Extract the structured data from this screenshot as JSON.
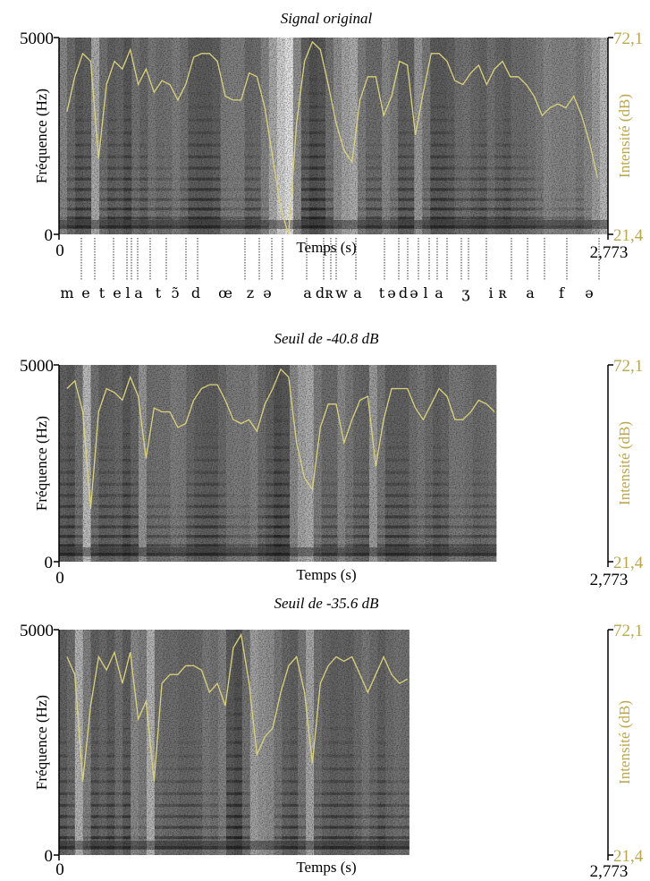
{
  "figure": {
    "panels": [
      {
        "title": "Signal original",
        "y_max_label": "5000",
        "y_min_label": "0",
        "x_min_label": "0",
        "x_max_label": "2,773",
        "ylabel": "Fréquence (Hz)",
        "xlabel": "Temps (s)",
        "y2label": "Intensité (dB)",
        "y2_max_label": "72,1",
        "y2_min_label": "21,4"
      },
      {
        "title": "Seuil de -40.8 dB",
        "y_max_label": "5000",
        "y_min_label": "0",
        "x_min_label": "0",
        "x_max_label": "2,773",
        "ylabel": "Fréquence (Hz)",
        "xlabel": "Temps (s)",
        "y2label": "Intensité (dB)",
        "y2_max_label": "72,1",
        "y2_min_label": "21,4"
      },
      {
        "title": "Seuil de -35.6 dB",
        "y_max_label": "5000",
        "y_min_label": "0",
        "x_min_label": "0",
        "x_max_label": "2,773",
        "ylabel": "Fréquence (Hz)",
        "xlabel": "Temps (s)",
        "y2label": "Intensité (dB)",
        "y2_max_label": "72,1",
        "y2_min_label": "21,4"
      }
    ],
    "phonemes": [
      "m",
      "e",
      "t",
      "e",
      "l",
      "a",
      "t",
      "ɔ̃",
      "d",
      "œ",
      "z",
      "ə",
      "a",
      "d",
      "ʀ",
      "w",
      "a",
      "t",
      "ə",
      "d",
      "ə",
      "l",
      "a",
      "ʒ",
      "i",
      "ʀ",
      "a",
      "f",
      "ə"
    ],
    "colors": {
      "intensity": "#d9d27a",
      "intensity_text": "#b9a84a",
      "axis": "#000000"
    }
  },
  "chart_data": [
    {
      "type": "heatmap",
      "subtype": "spectrogram-with-intensity-contour",
      "title": "Signal original",
      "xlabel": "Temps (s)",
      "ylabel": "Fréquence (Hz)",
      "y2label": "Intensité (dB)",
      "xlim": [
        0,
        2.773
      ],
      "ylim": [
        0,
        5000
      ],
      "y2lim": [
        21.4,
        72.1
      ],
      "retained_duration": 2.773,
      "intensity": {
        "t": [
          0.04,
          0.08,
          0.12,
          0.16,
          0.2,
          0.24,
          0.28,
          0.32,
          0.36,
          0.4,
          0.44,
          0.48,
          0.52,
          0.56,
          0.6,
          0.64,
          0.68,
          0.72,
          0.76,
          0.8,
          0.84,
          0.88,
          0.92,
          0.96,
          1.0,
          1.04,
          1.08,
          1.12,
          1.16,
          1.2,
          1.24,
          1.28,
          1.32,
          1.36,
          1.4,
          1.44,
          1.48,
          1.52,
          1.56,
          1.6,
          1.64,
          1.68,
          1.72,
          1.76,
          1.8,
          1.84,
          1.88,
          1.92,
          1.96,
          2.0,
          2.04,
          2.08,
          2.12,
          2.16,
          2.2,
          2.24,
          2.28,
          2.32,
          2.36,
          2.4,
          2.44,
          2.48,
          2.52,
          2.56,
          2.6,
          2.64,
          2.68,
          2.72
        ],
        "db": [
          53,
          62,
          68,
          66,
          41,
          60,
          66,
          64,
          69,
          60,
          64,
          58,
          61,
          60,
          56,
          60,
          67,
          68,
          68,
          66,
          57,
          56,
          56,
          63,
          62,
          54,
          41,
          28,
          21.4,
          50,
          66,
          71,
          69,
          60,
          50,
          43,
          40,
          56,
          62,
          62,
          52,
          57,
          66,
          65,
          47,
          58,
          68,
          68,
          66,
          61,
          60,
          63,
          65,
          60,
          64,
          66,
          62,
          62,
          60,
          57,
          52,
          54,
          55,
          54,
          57,
          52,
          45,
          36
        ]
      },
      "phoneme_segmentation": [
        "m",
        "e",
        "t",
        "e",
        "l",
        "a",
        "t",
        "ɔ̃",
        "d",
        "œ",
        "z",
        "ə",
        "a",
        "d",
        "ʀ",
        "w",
        "a",
        "t",
        "ə",
        "d",
        "ə",
        "l",
        "a",
        "ʒ",
        "i",
        "ʀ",
        "a",
        "f",
        "ə"
      ],
      "grid": false
    },
    {
      "type": "heatmap",
      "subtype": "spectrogram-with-intensity-contour",
      "title": "Seuil de -40.8 dB",
      "xlabel": "Temps (s)",
      "ylabel": "Fréquence (Hz)",
      "y2label": "Intensité (dB)",
      "xlim": [
        0,
        2.773
      ],
      "ylim": [
        0,
        5000
      ],
      "y2lim": [
        21.4,
        72.1
      ],
      "retained_duration": 2.21,
      "intensity": {
        "t": [
          0.04,
          0.08,
          0.12,
          0.16,
          0.2,
          0.24,
          0.28,
          0.32,
          0.36,
          0.4,
          0.44,
          0.48,
          0.52,
          0.56,
          0.6,
          0.64,
          0.68,
          0.72,
          0.76,
          0.8,
          0.84,
          0.88,
          0.92,
          0.96,
          1.0,
          1.04,
          1.08,
          1.12,
          1.16,
          1.2,
          1.24,
          1.28,
          1.32,
          1.36,
          1.4,
          1.44,
          1.48,
          1.52,
          1.56,
          1.6,
          1.64,
          1.68,
          1.72,
          1.76,
          1.8,
          1.84,
          1.88,
          1.92,
          1.96,
          2.0,
          2.04,
          2.08,
          2.12,
          2.16,
          2.2
        ],
        "db": [
          66,
          68,
          60,
          35,
          60,
          66,
          65,
          63,
          69,
          64,
          48,
          61,
          60,
          60,
          56,
          57,
          63,
          66,
          67,
          67,
          63,
          58,
          57,
          58,
          55,
          62,
          66,
          71,
          69,
          52,
          43,
          40,
          56,
          62,
          62,
          52,
          58,
          63,
          64,
          46,
          58,
          66,
          66,
          66,
          61,
          58,
          62,
          66,
          64,
          58,
          58,
          60,
          63,
          62,
          60
        ]
      },
      "grid": false
    },
    {
      "type": "heatmap",
      "subtype": "spectrogram-with-intensity-contour",
      "title": "Seuil de -35.6 dB",
      "xlabel": "Temps (s)",
      "ylabel": "Fréquence (Hz)",
      "y2label": "Intensité (dB)",
      "xlim": [
        0,
        2.773
      ],
      "ylim": [
        0,
        5000
      ],
      "y2lim": [
        21.4,
        72.1
      ],
      "retained_duration": 1.77,
      "intensity": {
        "t": [
          0.04,
          0.08,
          0.12,
          0.16,
          0.2,
          0.24,
          0.28,
          0.32,
          0.36,
          0.4,
          0.44,
          0.48,
          0.52,
          0.56,
          0.6,
          0.64,
          0.68,
          0.72,
          0.76,
          0.8,
          0.84,
          0.88,
          0.92,
          0.96,
          1.0,
          1.04,
          1.08,
          1.12,
          1.16,
          1.2,
          1.24,
          1.28,
          1.32,
          1.36,
          1.4,
          1.44,
          1.48,
          1.52,
          1.56,
          1.6,
          1.64,
          1.68,
          1.72,
          1.76
        ],
        "db": [
          66,
          62,
          38,
          55,
          66,
          63,
          67,
          60,
          67,
          52,
          56,
          38,
          60,
          62,
          62,
          64,
          64,
          63,
          58,
          60,
          55,
          68,
          71,
          60,
          44,
          48,
          50,
          58,
          64,
          66,
          58,
          42,
          60,
          64,
          66,
          65,
          66,
          62,
          58,
          62,
          66,
          62,
          60,
          61
        ]
      },
      "grid": false
    }
  ]
}
